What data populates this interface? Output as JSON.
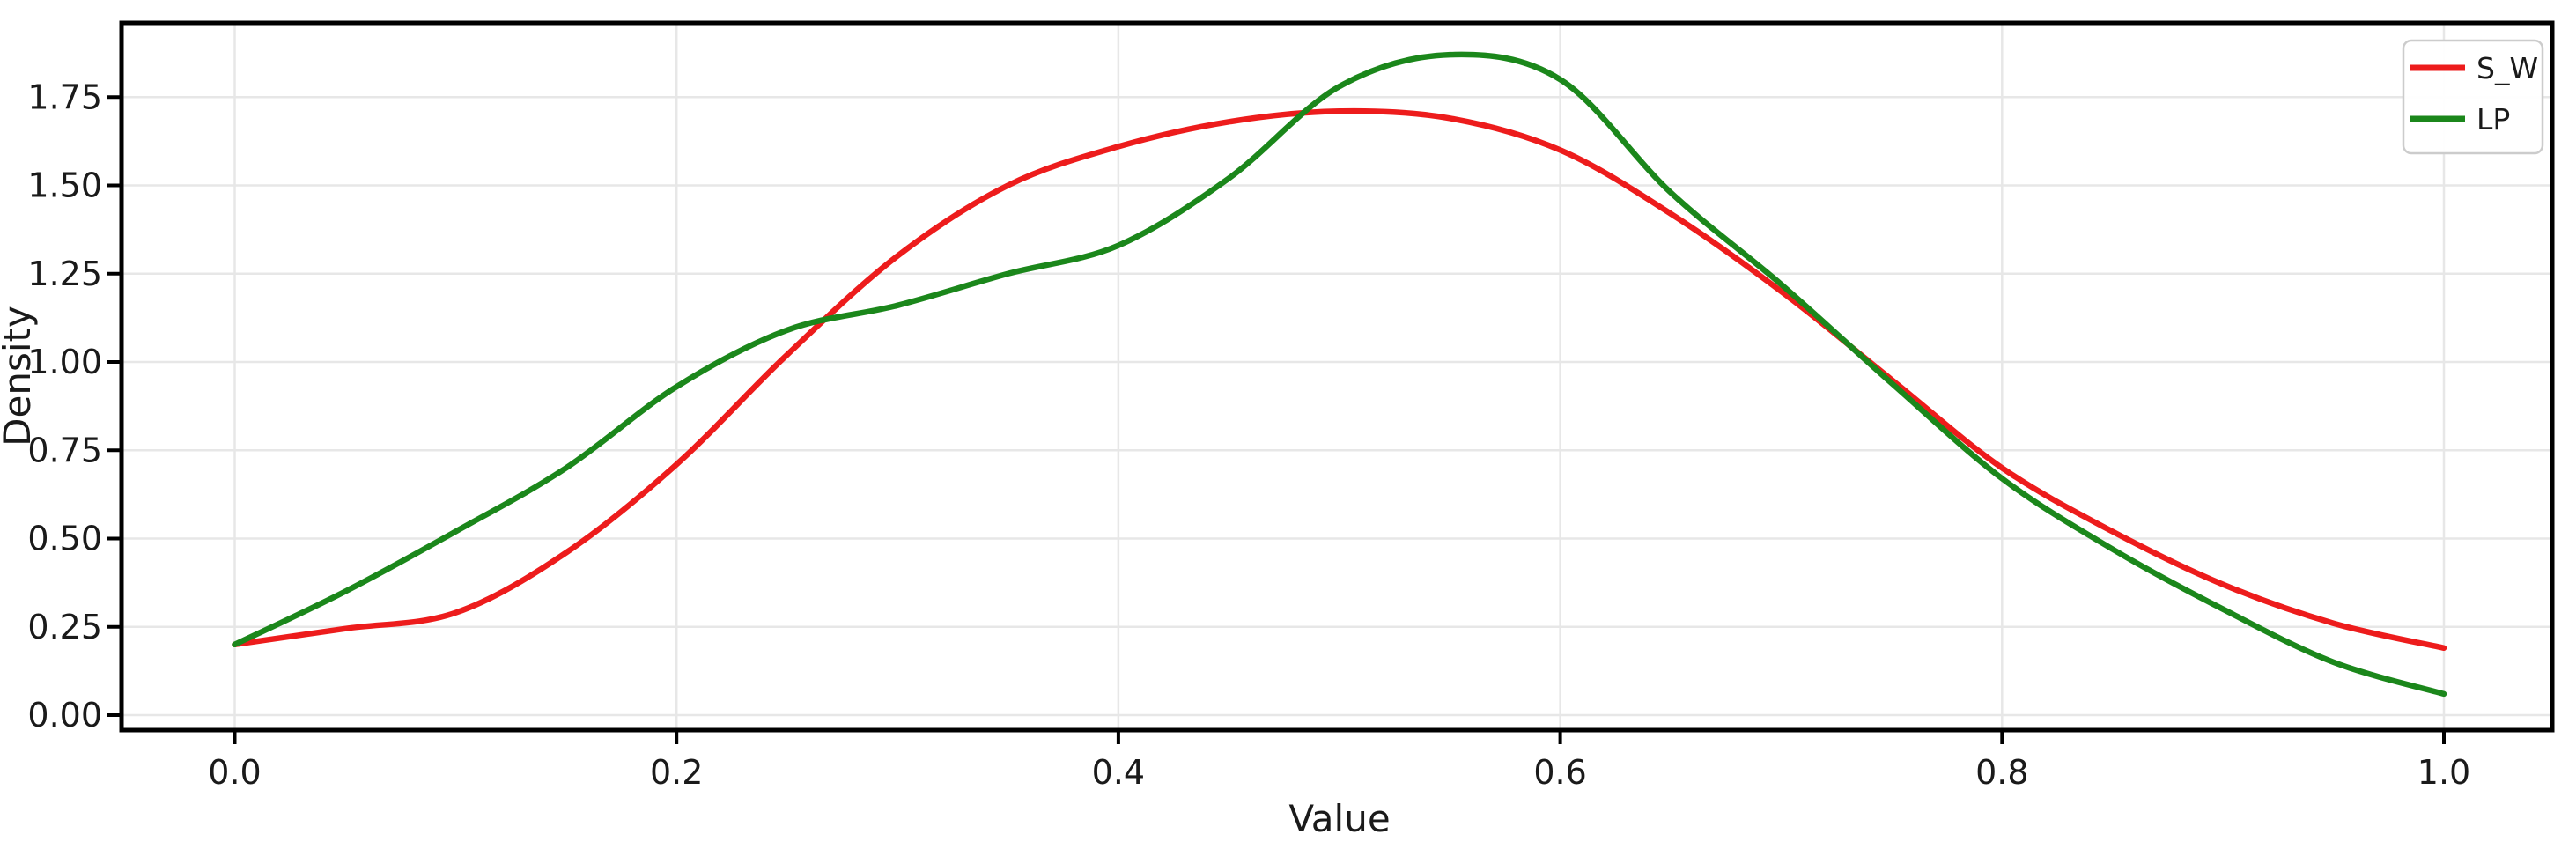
{
  "chart_data": {
    "type": "line",
    "subtype": "kde-density",
    "title": "",
    "xlabel": "Value",
    "ylabel": "Density",
    "x_tick_labels": [
      "0.0",
      "0.2",
      "0.4",
      "0.6",
      "0.8",
      "1.0"
    ],
    "x_ticks": [
      0.0,
      0.2,
      0.4,
      0.6,
      0.8,
      1.0
    ],
    "y_tick_labels": [
      "0.00",
      "0.25",
      "0.50",
      "0.75",
      "1.00",
      "1.25",
      "1.50",
      "1.75"
    ],
    "y_ticks": [
      0.0,
      0.25,
      0.5,
      0.75,
      1.0,
      1.25,
      1.5,
      1.75
    ],
    "xlim": [
      -0.051,
      1.049
    ],
    "ylim": [
      -0.042,
      1.96
    ],
    "grid": true,
    "grid_color": "#e7e7e7",
    "spine_color": "#000000",
    "background_color": "#ffffff",
    "legend_position": "upper right",
    "legend_border_color": "#cccccc",
    "x": [
      0.0,
      0.05,
      0.1,
      0.15,
      0.2,
      0.25,
      0.3,
      0.35,
      0.4,
      0.45,
      0.5,
      0.55,
      0.6,
      0.65,
      0.7,
      0.75,
      0.8,
      0.85,
      0.9,
      0.95,
      1.0
    ],
    "series": [
      {
        "name": "S_W",
        "color": "#ed1c1c",
        "values": [
          0.2,
          0.245,
          0.29,
          0.46,
          0.71,
          1.02,
          1.3,
          1.5,
          1.61,
          1.68,
          1.71,
          1.69,
          1.6,
          1.42,
          1.2,
          0.95,
          0.7,
          0.52,
          0.37,
          0.26,
          0.19
        ],
        "peak": {
          "x": 0.49,
          "y": 1.71
        }
      },
      {
        "name": "LP",
        "color": "#1b871b",
        "values": [
          0.2,
          0.35,
          0.52,
          0.7,
          0.93,
          1.09,
          1.16,
          1.25,
          1.33,
          1.52,
          1.78,
          1.87,
          1.8,
          1.48,
          1.22,
          0.94,
          0.67,
          0.47,
          0.3,
          0.15,
          0.06
        ],
        "peak": {
          "x": 0.55,
          "y": 1.87
        }
      }
    ]
  }
}
